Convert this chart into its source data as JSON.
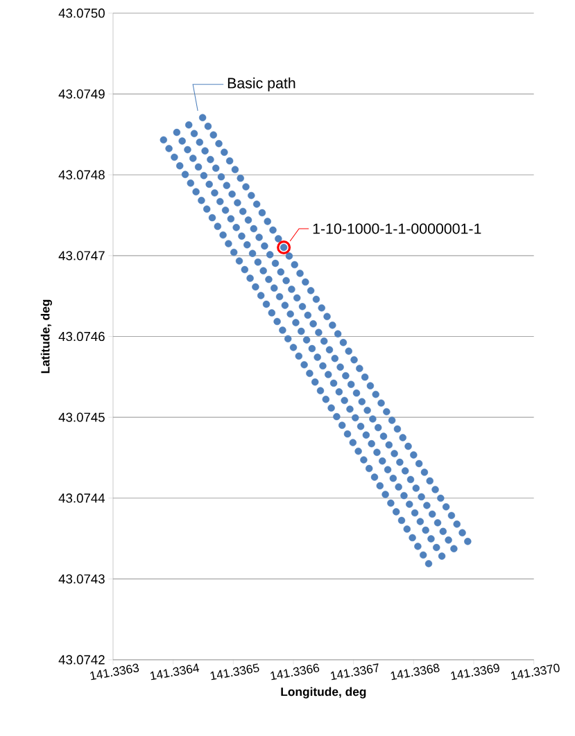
{
  "chart_data": {
    "type": "scatter",
    "xlabel": "Longitude, deg",
    "ylabel": "Latitude, deg",
    "xlim": [
      141.3363,
      141.337
    ],
    "ylim": [
      43.0742,
      43.075
    ],
    "xticks": [
      141.3363,
      141.3364,
      141.3365,
      141.3366,
      141.3367,
      141.3368,
      141.3369,
      {
        "value": 141.337,
        "label": "141.3370"
      }
    ],
    "yticks": [
      43.0742,
      43.0743,
      43.0744,
      43.0745,
      43.0746,
      43.0747,
      43.0748,
      43.0749,
      {
        "value": 43.075,
        "label": "43.0750"
      }
    ],
    "grid": "y",
    "marker": "circle",
    "series": [
      {
        "name": "Basic path",
        "color": "#4f81bd",
        "x": [
          141.336449,
          141.336458,
          141.336467,
          141.336476,
          141.336485,
          141.336494,
          141.336503,
          141.336512,
          141.336521,
          141.33653,
          141.336539,
          141.336548,
          141.336557,
          141.336566,
          141.336575,
          141.336584,
          141.336593,
          141.336602,
          141.336611,
          141.33662,
          141.336629,
          141.336638,
          141.336647,
          141.336656,
          141.336665,
          141.336674,
          141.336683,
          141.336692,
          141.336701,
          141.33671,
          141.336719,
          141.336728,
          141.336737,
          141.336746,
          141.336755,
          141.336764,
          141.336773,
          141.336782,
          141.336791,
          141.3368,
          141.336809,
          141.336818,
          141.336827,
          141.336836,
          141.336845,
          141.336854,
          141.336863,
          141.336872,
          141.336881,
          141.33689,
          141.336426,
          141.336435,
          141.336444,
          141.336453,
          141.336462,
          141.336471,
          141.33648,
          141.336489,
          141.336498,
          141.336507,
          141.336516,
          141.336525,
          141.336534,
          141.336543,
          141.336552,
          141.336561,
          141.33657,
          141.336579,
          141.336588,
          141.336597,
          141.336606,
          141.336615,
          141.336624,
          141.336633,
          141.336642,
          141.336651,
          141.33666,
          141.336669,
          141.336678,
          141.336687,
          141.336696,
          141.336705,
          141.336714,
          141.336723,
          141.336732,
          141.336741,
          141.33675,
          141.336759,
          141.336768,
          141.336777,
          141.336786,
          141.336795,
          141.336804,
          141.336813,
          141.336822,
          141.336831,
          141.33684,
          141.336849,
          141.336858,
          141.336867,
          141.336406,
          141.336415,
          141.336424,
          141.336433,
          141.336442,
          141.336451,
          141.33646,
          141.336469,
          141.336478,
          141.336487,
          141.336496,
          141.336505,
          141.336514,
          141.336523,
          141.336532,
          141.336541,
          141.33655,
          141.336559,
          141.336568,
          141.336577,
          141.336586,
          141.336595,
          141.336604,
          141.336613,
          141.336622,
          141.336631,
          141.33664,
          141.336649,
          141.336658,
          141.336667,
          141.336676,
          141.336685,
          141.336694,
          141.336703,
          141.336712,
          141.336721,
          141.33673,
          141.336739,
          141.336748,
          141.336757,
          141.336766,
          141.336775,
          141.336784,
          141.336793,
          141.336802,
          141.336811,
          141.33682,
          141.336829,
          141.336838,
          141.336847,
          141.336384,
          141.336393,
          141.336402,
          141.336411,
          141.33642,
          141.336429,
          141.336438,
          141.336447,
          141.336456,
          141.336465,
          141.336474,
          141.336483,
          141.336492,
          141.336501,
          141.33651,
          141.336519,
          141.336528,
          141.336537,
          141.336546,
          141.336555,
          141.336564,
          141.336573,
          141.336582,
          141.336591,
          141.3366,
          141.336609,
          141.336618,
          141.336627,
          141.336636,
          141.336645,
          141.336654,
          141.336663,
          141.336672,
          141.336681,
          141.33669,
          141.336699,
          141.336708,
          141.336717,
          141.336726,
          141.336735,
          141.336744,
          141.336753,
          141.336762,
          141.336771,
          141.33678,
          141.336789,
          141.336798,
          141.336807,
          141.336816,
          141.336825
        ],
        "values": [
          43.0748707,
          43.07486,
          43.0748493,
          43.0748386,
          43.0748279,
          43.0748172,
          43.0748065,
          43.0747958,
          43.0747851,
          43.0747744,
          43.0747637,
          43.074753,
          43.0747423,
          43.0747316,
          43.0747209,
          43.0747102,
          43.0746995,
          43.0746888,
          43.0746781,
          43.0746674,
          43.0746567,
          43.074646,
          43.0746353,
          43.0746246,
          43.0746139,
          43.0746032,
          43.0745925,
          43.0745818,
          43.0745711,
          43.0745604,
          43.0745497,
          43.074539,
          43.0745283,
          43.0745176,
          43.0745069,
          43.0744962,
          43.0744855,
          43.0744748,
          43.0744641,
          43.0744534,
          43.0744427,
          43.074432,
          43.0744213,
          43.0744106,
          43.0743999,
          43.0743892,
          43.0743785,
          43.0743678,
          43.0743571,
          43.0743464,
          43.0748617,
          43.074851,
          43.0748403,
          43.0748296,
          43.0748189,
          43.0748082,
          43.0747975,
          43.0747868,
          43.0747761,
          43.0747654,
          43.0747547,
          43.074744,
          43.0747333,
          43.0747226,
          43.0747119,
          43.0747012,
          43.0746905,
          43.0746798,
          43.0746691,
          43.0746584,
          43.0746477,
          43.074637,
          43.0746263,
          43.0746156,
          43.0746049,
          43.0745942,
          43.0745835,
          43.0745728,
          43.0745621,
          43.0745514,
          43.0745407,
          43.07453,
          43.0745193,
          43.0745086,
          43.0744979,
          43.0744872,
          43.0744765,
          43.0744658,
          43.0744551,
          43.0744444,
          43.0744337,
          43.074423,
          43.0744123,
          43.0744016,
          43.0743909,
          43.0743802,
          43.0743695,
          43.0743588,
          43.0743481,
          43.0743374,
          43.0748525,
          43.0748418,
          43.0748311,
          43.0748204,
          43.0748097,
          43.074799,
          43.0747883,
          43.0747776,
          43.0747669,
          43.0747562,
          43.0747455,
          43.0747348,
          43.0747241,
          43.0747134,
          43.0747027,
          43.074692,
          43.0746813,
          43.0746706,
          43.0746599,
          43.0746492,
          43.0746385,
          43.0746278,
          43.0746171,
          43.0746064,
          43.0745957,
          43.074585,
          43.0745743,
          43.0745636,
          43.0745529,
          43.0745422,
          43.0745315,
          43.0745208,
          43.0745101,
          43.0744994,
          43.0744887,
          43.074478,
          43.0744673,
          43.0744566,
          43.0744459,
          43.0744352,
          43.0744245,
          43.0744138,
          43.0744031,
          43.0743924,
          43.0743817,
          43.074371,
          43.0743603,
          43.0743496,
          43.0743389,
          43.0743282,
          43.0748432,
          43.0748325,
          43.0748218,
          43.0748111,
          43.0748004,
          43.0747897,
          43.074779,
          43.0747683,
          43.0747576,
          43.0747469,
          43.0747362,
          43.0747255,
          43.0747148,
          43.0747041,
          43.0746934,
          43.0746827,
          43.074672,
          43.0746613,
          43.0746506,
          43.0746399,
          43.0746292,
          43.0746185,
          43.0746078,
          43.0745971,
          43.0745864,
          43.0745757,
          43.074565,
          43.0745543,
          43.0745436,
          43.0745329,
          43.0745222,
          43.0745115,
          43.0745008,
          43.0744901,
          43.0744794,
          43.0744687,
          43.074458,
          43.0744473,
          43.0744366,
          43.0744259,
          43.0744152,
          43.0744045,
          43.0743938,
          43.0743831,
          43.0743724,
          43.0743617,
          43.074351,
          43.0743403,
          43.0743296,
          43.0743189
        ]
      },
      {
        "name": "1-10-1000-1-1-0000001-1",
        "color": "#ff0000",
        "x": [
          141.336584
        ],
        "values": [
          43.0747102
        ]
      }
    ]
  }
}
